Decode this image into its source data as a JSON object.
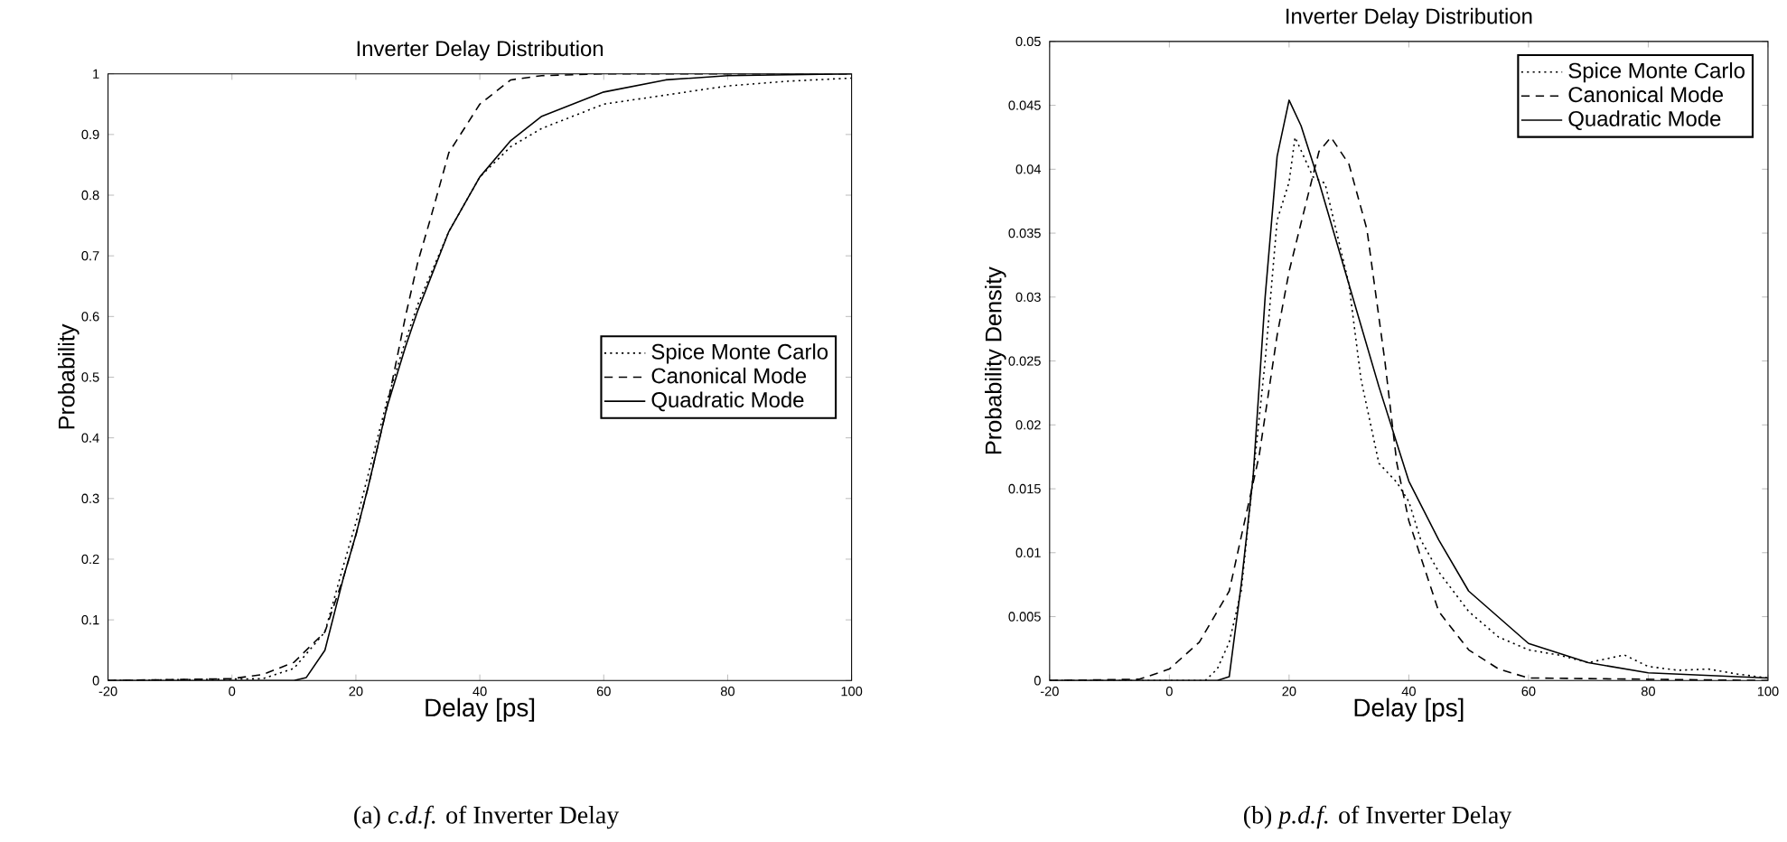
{
  "chart_data": [
    {
      "type": "line",
      "title": "Inverter Delay Distribution",
      "xlabel": "Delay [ps]",
      "ylabel": "Probability",
      "xlim": [
        -20,
        100
      ],
      "ylim": [
        0,
        1
      ],
      "xticks": [
        -20,
        0,
        20,
        40,
        60,
        80,
        100
      ],
      "yticks": [
        0,
        0.1,
        0.2,
        0.3,
        0.4,
        0.5,
        0.6,
        0.7,
        0.8,
        0.9,
        1
      ],
      "legend": "right",
      "annotations": [
        "(a) *c.d.f.* of Inverter Delay"
      ],
      "series": [
        {
          "name": "Spice Monte Carlo",
          "color": "#000000",
          "line_style": "dotted",
          "x": [
            -20,
            5,
            10,
            15,
            18,
            20,
            22,
            25,
            28,
            30,
            35,
            40,
            45,
            50,
            60,
            70,
            80,
            90,
            100
          ],
          "values": [
            0,
            0.003,
            0.02,
            0.08,
            0.19,
            0.26,
            0.34,
            0.46,
            0.56,
            0.62,
            0.74,
            0.83,
            0.88,
            0.91,
            0.95,
            0.965,
            0.98,
            0.988,
            0.993
          ]
        },
        {
          "name": "Canonical Mode",
          "color": "#000000",
          "line_style": "dashed",
          "x": [
            -20,
            0,
            5,
            10,
            15,
            18,
            20,
            22,
            25,
            28,
            30,
            32,
            35,
            40,
            45,
            50,
            60,
            100
          ],
          "values": [
            0,
            0.003,
            0.01,
            0.03,
            0.08,
            0.17,
            0.24,
            0.32,
            0.45,
            0.6,
            0.69,
            0.76,
            0.87,
            0.95,
            0.99,
            0.997,
            1,
            1
          ]
        },
        {
          "name": "Quadratic Mode",
          "color": "#000000",
          "line_style": "solid",
          "x": [
            -20,
            10,
            12,
            15,
            18,
            20,
            22,
            25,
            28,
            30,
            35,
            40,
            45,
            50,
            60,
            70,
            80,
            100
          ],
          "values": [
            0,
            0,
            0.005,
            0.05,
            0.17,
            0.24,
            0.32,
            0.45,
            0.55,
            0.61,
            0.74,
            0.83,
            0.89,
            0.93,
            0.97,
            0.99,
            0.997,
            1
          ]
        }
      ]
    },
    {
      "type": "line",
      "title": "Inverter Delay Distribution",
      "xlabel": "Delay [ps]",
      "ylabel": "Probability Density",
      "xlim": [
        -20,
        100
      ],
      "ylim": [
        0,
        0.05
      ],
      "xticks": [
        -20,
        0,
        20,
        40,
        60,
        80,
        100
      ],
      "yticks": [
        0,
        0.005,
        0.01,
        0.015,
        0.02,
        0.025,
        0.03,
        0.035,
        0.04,
        0.045,
        0.05
      ],
      "legend": "top right",
      "annotations": [
        "(b) *p.d.f.* of Inverter Delay"
      ],
      "series": [
        {
          "name": "Spice Monte Carlo",
          "color": "#000000",
          "line_style": "dotted",
          "x": [
            -20,
            6,
            8,
            10,
            12,
            14,
            16,
            18,
            20,
            21,
            24,
            26,
            30,
            32,
            35,
            38,
            40,
            42,
            45,
            50,
            55,
            60,
            65,
            70,
            76,
            80,
            85,
            90,
            95,
            100
          ],
          "values": [
            0,
            0,
            0.0009,
            0.003,
            0.007,
            0.016,
            0.025,
            0.036,
            0.039,
            0.0425,
            0.0394,
            0.0389,
            0.031,
            0.0236,
            0.017,
            0.0155,
            0.014,
            0.011,
            0.0085,
            0.0054,
            0.0034,
            0.0024,
            0.002,
            0.0014,
            0.002,
            0.0011,
            0.0008,
            0.0009,
            0.0005,
            0.0002
          ]
        },
        {
          "name": "Canonical Mode",
          "color": "#000000",
          "line_style": "dashed",
          "x": [
            -20,
            -5,
            0,
            5,
            10,
            15,
            18,
            20,
            22,
            25,
            27,
            30,
            33,
            36,
            38,
            40,
            45,
            50,
            55,
            60,
            100
          ],
          "values": [
            0,
            0.0001,
            0.0009,
            0.003,
            0.007,
            0.0176,
            0.027,
            0.032,
            0.0358,
            0.0414,
            0.0425,
            0.0404,
            0.0353,
            0.025,
            0.017,
            0.0125,
            0.0054,
            0.0024,
            0.0009,
            0.0002,
            0
          ]
        },
        {
          "name": "Quadratic Mode",
          "color": "#000000",
          "line_style": "solid",
          "x": [
            -20,
            8,
            10,
            12,
            14,
            16,
            18,
            20,
            22,
            25,
            30,
            35,
            40,
            45,
            50,
            60,
            70,
            80,
            100
          ],
          "values": [
            0,
            0,
            0.0003,
            0.0075,
            0.016,
            0.03,
            0.041,
            0.0454,
            0.0434,
            0.039,
            0.031,
            0.023,
            0.0156,
            0.011,
            0.007,
            0.0029,
            0.0014,
            0.0006,
            0.0002
          ]
        }
      ]
    }
  ]
}
